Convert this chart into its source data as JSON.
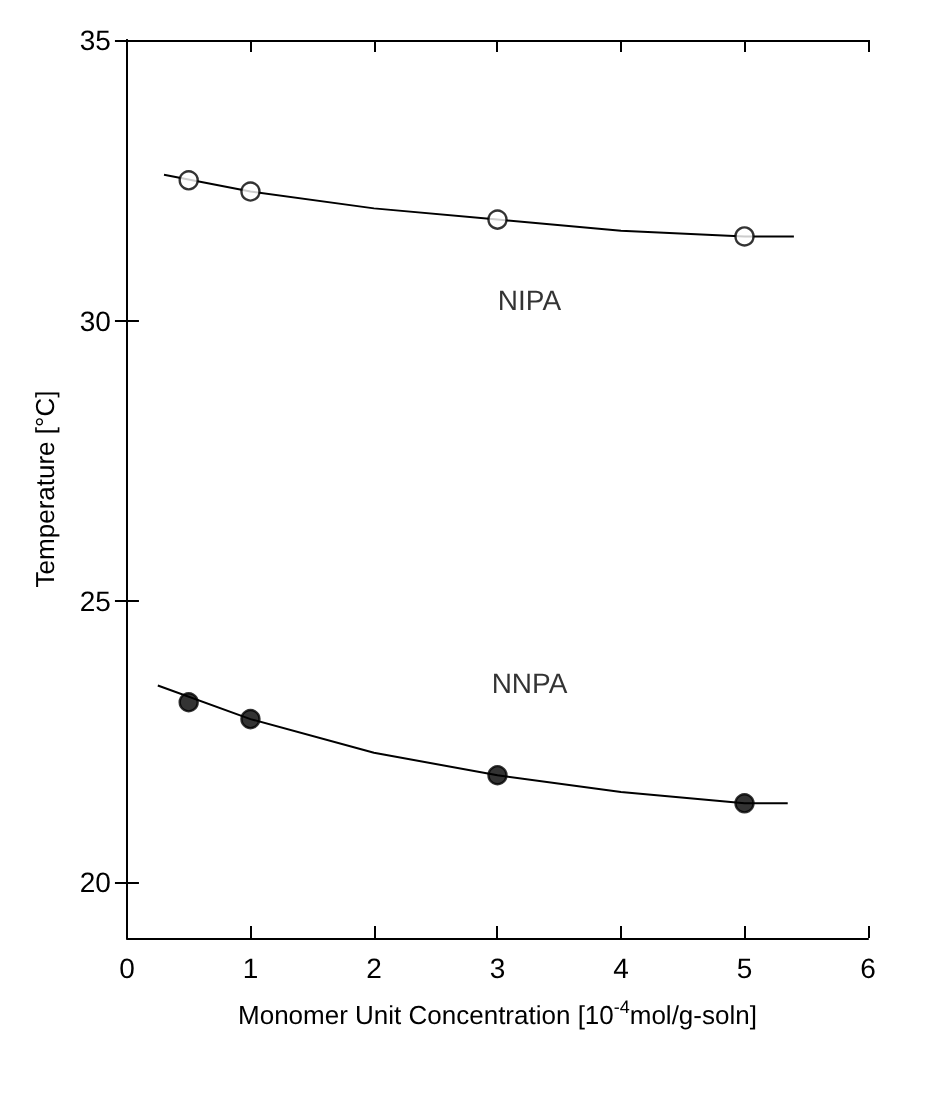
{
  "chart_data": {
    "type": "scatter",
    "xlabel": "Monomer Unit Concentration [10$^{-4}$mol/g-soln]",
    "ylabel": "Temperature [°C]",
    "xlim": [
      0,
      6
    ],
    "xticks": [
      0,
      1,
      2,
      3,
      4,
      5,
      6
    ],
    "ylim": [
      19,
      35
    ],
    "yticks": [
      20,
      25,
      30,
      35
    ],
    "grid": false,
    "legend": false,
    "marker": "circle",
    "series": [
      {
        "name": "NIPA",
        "color": "#ffffff",
        "x": [
          0.5,
          1,
          3,
          5
        ],
        "values": [
          32.5,
          32.3,
          31.8,
          31.5
        ]
      },
      {
        "name": "NNPA",
        "color": "#000000",
        "x": [
          0.5,
          1,
          3,
          5
        ],
        "values": [
          23.2,
          22.9,
          21.9,
          21.4
        ]
      },
      {
        "type": "line",
        "marker": "none",
        "line_style": "solid",
        "color": "#000000",
        "x": [
          0.3,
          1,
          2,
          3,
          4,
          5,
          5.4
        ],
        "values": [
          32.6,
          32.3,
          32.0,
          31.8,
          31.6,
          31.5,
          31.5
        ]
      },
      {
        "type": "line",
        "marker": "none",
        "line_style": "solid",
        "color": "#000000",
        "x": [
          0.25,
          1,
          2,
          3,
          4,
          5,
          5.35
        ],
        "values": [
          23.5,
          22.9,
          22.3,
          21.9,
          21.6,
          21.4,
          21.4
        ]
      }
    ]
  }
}
